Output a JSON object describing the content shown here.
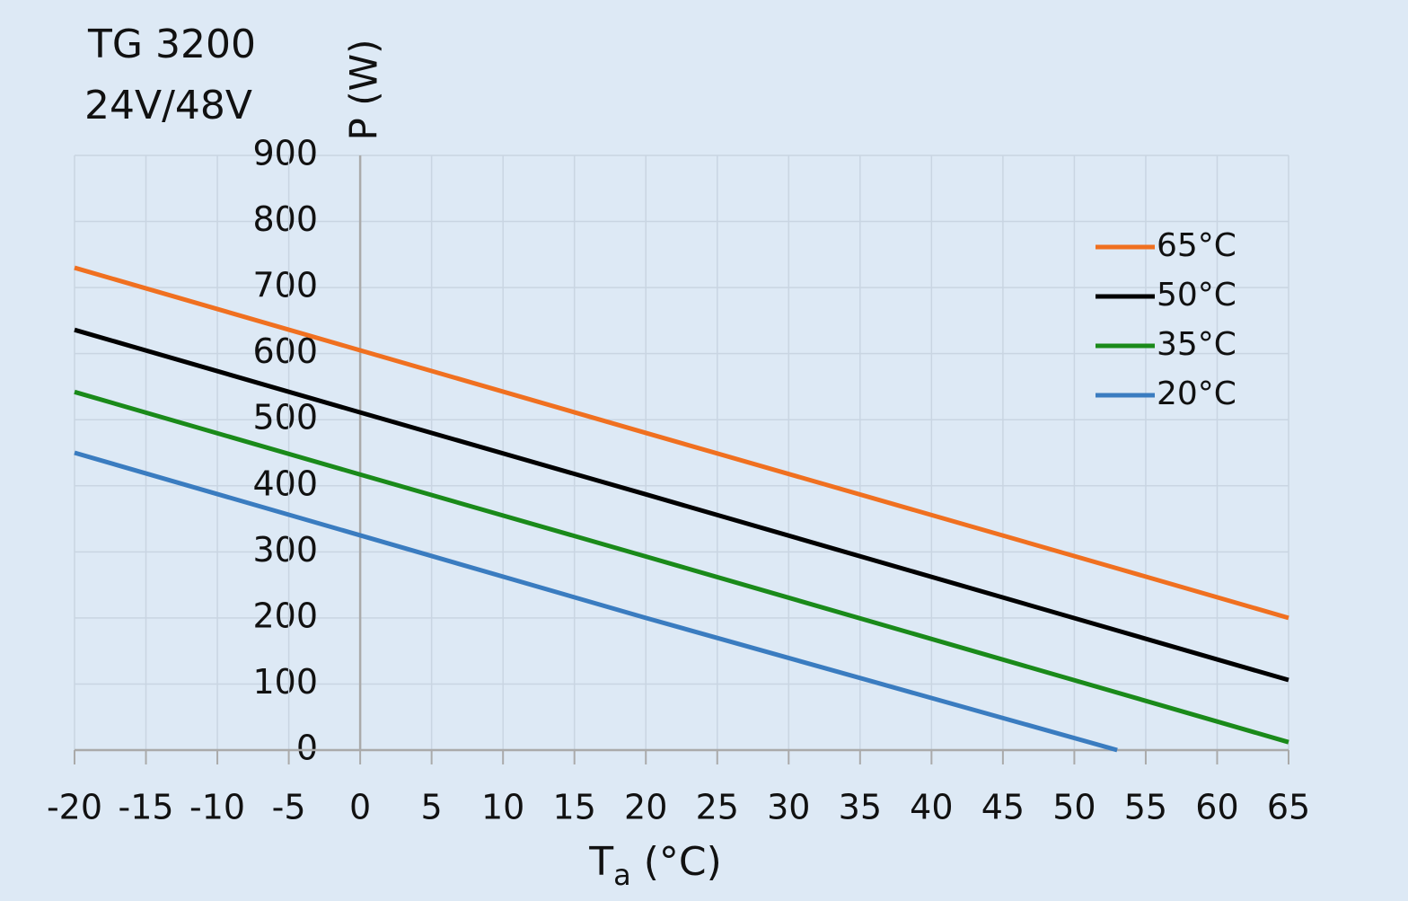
{
  "chart_data": {
    "type": "line",
    "title": [
      "TG 3200",
      "24V/48V"
    ],
    "ylabel": "P (W)",
    "xlabel": [
      "T",
      "a",
      " (°C)"
    ],
    "x": [
      -20,
      0,
      20,
      53,
      65
    ],
    "series": [
      {
        "name": "65°C",
        "color": "#f07020",
        "values": [
          730,
          605,
          480,
          275,
          200
        ]
      },
      {
        "name": "50°C",
        "color": "#000000",
        "values": [
          636,
          511,
          387,
          181,
          106
        ]
      },
      {
        "name": "35°C",
        "color": "#1a8a1a",
        "values": [
          542,
          417,
          293,
          87,
          12
        ]
      },
      {
        "name": "20°C",
        "color": "#3a7cc0",
        "values": [
          450,
          325,
          200,
          0,
          null
        ]
      }
    ],
    "xlim": [
      -20,
      65
    ],
    "xticks": [
      -20,
      -15,
      -10,
      -5,
      0,
      5,
      10,
      15,
      20,
      25,
      30,
      35,
      40,
      45,
      50,
      55,
      60,
      65
    ],
    "ylim": [
      0,
      900
    ],
    "yticks": [
      0,
      100,
      200,
      300,
      400,
      500,
      600,
      700,
      800,
      900
    ],
    "grid": true,
    "legend": "upper-right"
  }
}
